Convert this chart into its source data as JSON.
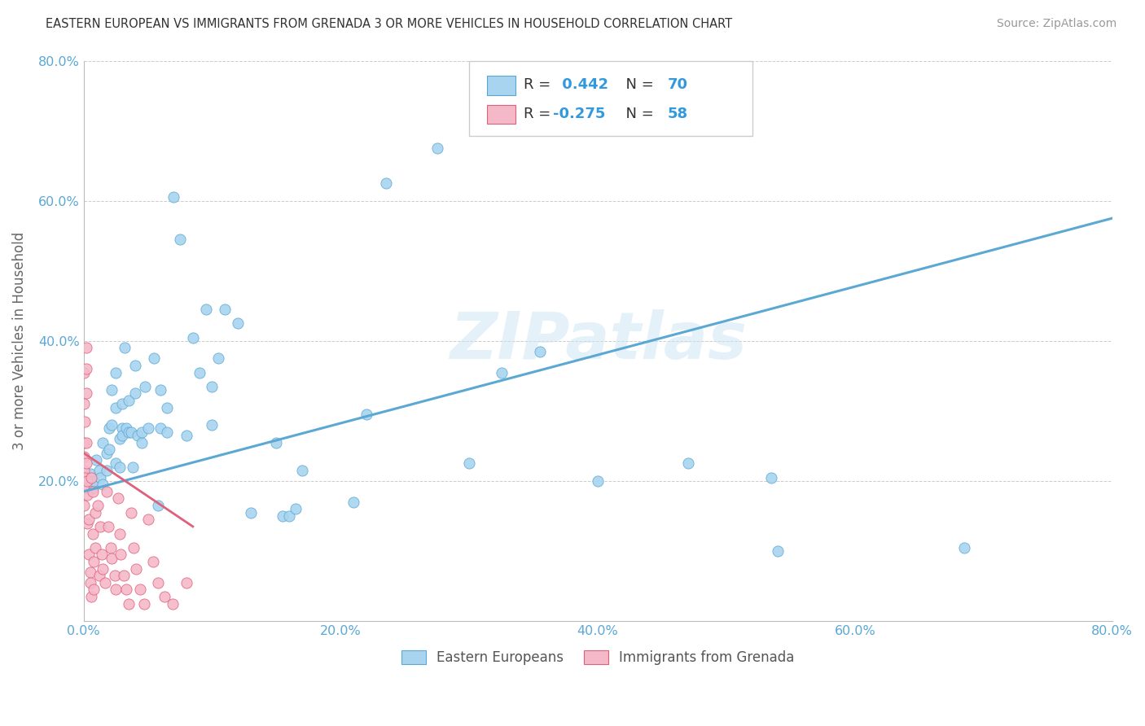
{
  "title": "EASTERN EUROPEAN VS IMMIGRANTS FROM GRENADA 3 OR MORE VEHICLES IN HOUSEHOLD CORRELATION CHART",
  "source": "Source: ZipAtlas.com",
  "ylabel": "3 or more Vehicles in Household",
  "xlim": [
    0.0,
    0.8
  ],
  "ylim": [
    0.0,
    0.8
  ],
  "xtick_labels": [
    "0.0%",
    "20.0%",
    "40.0%",
    "60.0%",
    "80.0%"
  ],
  "xtick_vals": [
    0.0,
    0.2,
    0.4,
    0.6,
    0.8
  ],
  "ytick_labels": [
    "20.0%",
    "40.0%",
    "60.0%",
    "80.0%"
  ],
  "ytick_vals": [
    0.2,
    0.4,
    0.6,
    0.8
  ],
  "legend_label1": "Eastern Europeans",
  "legend_label2": "Immigrants from Grenada",
  "R1": 0.442,
  "N1": 70,
  "R2": -0.275,
  "N2": 58,
  "color1": "#a8d4ef",
  "color2": "#f4b8c8",
  "line_color1": "#5ba8d4",
  "line_color2": "#e0607a",
  "watermark": "ZIPatlas",
  "blue_line": [
    0.0,
    0.185,
    0.8,
    0.575
  ],
  "pink_line": [
    0.0,
    0.24,
    0.085,
    0.135
  ],
  "blue_scatter": [
    [
      0.005,
      0.21
    ],
    [
      0.007,
      0.19
    ],
    [
      0.008,
      0.2
    ],
    [
      0.01,
      0.23
    ],
    [
      0.012,
      0.215
    ],
    [
      0.013,
      0.205
    ],
    [
      0.015,
      0.195
    ],
    [
      0.015,
      0.255
    ],
    [
      0.018,
      0.215
    ],
    [
      0.018,
      0.24
    ],
    [
      0.02,
      0.275
    ],
    [
      0.02,
      0.245
    ],
    [
      0.022,
      0.28
    ],
    [
      0.022,
      0.33
    ],
    [
      0.025,
      0.225
    ],
    [
      0.025,
      0.305
    ],
    [
      0.025,
      0.355
    ],
    [
      0.028,
      0.22
    ],
    [
      0.028,
      0.26
    ],
    [
      0.03,
      0.31
    ],
    [
      0.03,
      0.275
    ],
    [
      0.03,
      0.265
    ],
    [
      0.032,
      0.39
    ],
    [
      0.033,
      0.275
    ],
    [
      0.035,
      0.27
    ],
    [
      0.035,
      0.315
    ],
    [
      0.037,
      0.27
    ],
    [
      0.038,
      0.22
    ],
    [
      0.04,
      0.325
    ],
    [
      0.04,
      0.365
    ],
    [
      0.042,
      0.265
    ],
    [
      0.045,
      0.255
    ],
    [
      0.045,
      0.27
    ],
    [
      0.048,
      0.335
    ],
    [
      0.05,
      0.275
    ],
    [
      0.055,
      0.375
    ],
    [
      0.058,
      0.165
    ],
    [
      0.06,
      0.33
    ],
    [
      0.06,
      0.275
    ],
    [
      0.065,
      0.27
    ],
    [
      0.065,
      0.305
    ],
    [
      0.07,
      0.605
    ],
    [
      0.075,
      0.545
    ],
    [
      0.08,
      0.265
    ],
    [
      0.085,
      0.405
    ],
    [
      0.09,
      0.355
    ],
    [
      0.095,
      0.445
    ],
    [
      0.1,
      0.335
    ],
    [
      0.1,
      0.28
    ],
    [
      0.105,
      0.375
    ],
    [
      0.11,
      0.445
    ],
    [
      0.12,
      0.425
    ],
    [
      0.13,
      0.155
    ],
    [
      0.15,
      0.255
    ],
    [
      0.155,
      0.15
    ],
    [
      0.16,
      0.15
    ],
    [
      0.165,
      0.16
    ],
    [
      0.17,
      0.215
    ],
    [
      0.21,
      0.17
    ],
    [
      0.22,
      0.295
    ],
    [
      0.235,
      0.625
    ],
    [
      0.275,
      0.675
    ],
    [
      0.3,
      0.225
    ],
    [
      0.325,
      0.355
    ],
    [
      0.355,
      0.385
    ],
    [
      0.4,
      0.2
    ],
    [
      0.47,
      0.225
    ],
    [
      0.535,
      0.205
    ],
    [
      0.54,
      0.1
    ],
    [
      0.685,
      0.105
    ]
  ],
  "pink_scatter": [
    [
      0.0,
      0.19
    ],
    [
      0.0,
      0.235
    ],
    [
      0.0,
      0.31
    ],
    [
      0.0,
      0.355
    ],
    [
      0.0,
      0.255
    ],
    [
      0.0,
      0.165
    ],
    [
      0.0,
      0.215
    ],
    [
      0.001,
      0.205
    ],
    [
      0.001,
      0.285
    ],
    [
      0.002,
      0.39
    ],
    [
      0.002,
      0.36
    ],
    [
      0.002,
      0.325
    ],
    [
      0.002,
      0.255
    ],
    [
      0.002,
      0.225
    ],
    [
      0.003,
      0.2
    ],
    [
      0.003,
      0.18
    ],
    [
      0.003,
      0.14
    ],
    [
      0.004,
      0.145
    ],
    [
      0.004,
      0.095
    ],
    [
      0.005,
      0.07
    ],
    [
      0.005,
      0.055
    ],
    [
      0.006,
      0.035
    ],
    [
      0.006,
      0.205
    ],
    [
      0.007,
      0.185
    ],
    [
      0.007,
      0.125
    ],
    [
      0.008,
      0.085
    ],
    [
      0.008,
      0.045
    ],
    [
      0.009,
      0.155
    ],
    [
      0.009,
      0.105
    ],
    [
      0.011,
      0.165
    ],
    [
      0.012,
      0.065
    ],
    [
      0.013,
      0.135
    ],
    [
      0.014,
      0.095
    ],
    [
      0.015,
      0.075
    ],
    [
      0.017,
      0.055
    ],
    [
      0.018,
      0.185
    ],
    [
      0.019,
      0.135
    ],
    [
      0.021,
      0.105
    ],
    [
      0.022,
      0.09
    ],
    [
      0.024,
      0.065
    ],
    [
      0.025,
      0.045
    ],
    [
      0.027,
      0.175
    ],
    [
      0.028,
      0.125
    ],
    [
      0.029,
      0.095
    ],
    [
      0.031,
      0.065
    ],
    [
      0.033,
      0.045
    ],
    [
      0.035,
      0.025
    ],
    [
      0.037,
      0.155
    ],
    [
      0.039,
      0.105
    ],
    [
      0.041,
      0.075
    ],
    [
      0.044,
      0.045
    ],
    [
      0.047,
      0.025
    ],
    [
      0.05,
      0.145
    ],
    [
      0.054,
      0.085
    ],
    [
      0.058,
      0.055
    ],
    [
      0.063,
      0.035
    ],
    [
      0.069,
      0.025
    ],
    [
      0.08,
      0.055
    ]
  ]
}
